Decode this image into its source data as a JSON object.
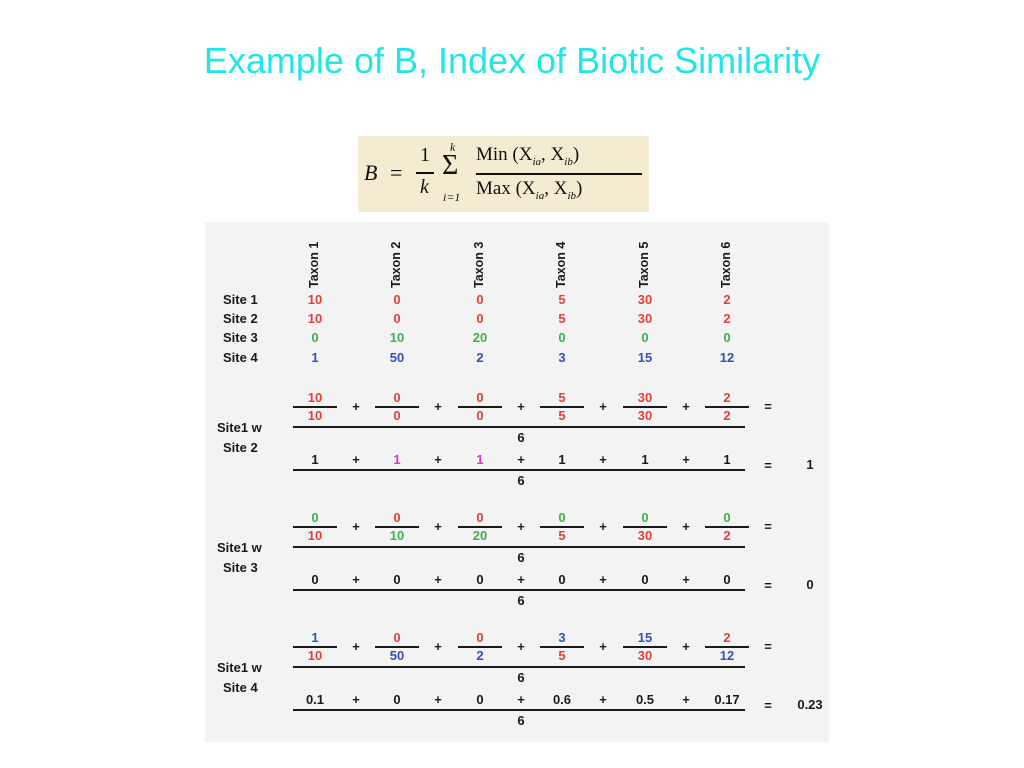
{
  "title": "Example of B, Index of Biotic Similarity",
  "formula": {
    "lhs": "B",
    "eq": "=",
    "one": "1",
    "k": "k",
    "sum_top": "k",
    "sum_sym": "Σ",
    "sum_bottom": "i=1",
    "numerator": "Min (X",
    "numerator_sub1": "ia",
    "numerator_mid": ", X",
    "numerator_sub2": "ib",
    "numerator_end": ")",
    "denominator": "Max (X",
    "denominator_sub1": "ia",
    "denominator_mid": ", X",
    "denominator_sub2": "ib",
    "denominator_end": ")"
  },
  "table": {
    "taxa": [
      "Taxon 1",
      "Taxon 2",
      "Taxon 3",
      "Taxon 4",
      "Taxon 5",
      "Taxon 6"
    ],
    "sites": [
      {
        "label": "Site 1",
        "values": [
          "10",
          "0",
          "0",
          "5",
          "30",
          "2"
        ],
        "color": "red"
      },
      {
        "label": "Site 2",
        "values": [
          "10",
          "0",
          "0",
          "5",
          "30",
          "2"
        ],
        "color": "red"
      },
      {
        "label": "Site 3",
        "values": [
          "0",
          "10",
          "20",
          "0",
          "0",
          "0"
        ],
        "color": "green"
      },
      {
        "label": "Site 4",
        "values": [
          "1",
          "50",
          "2",
          "3",
          "15",
          "12"
        ],
        "color": "blue"
      }
    ]
  },
  "comparisons": [
    {
      "label1": "Site1 w",
      "label2": "Site 2",
      "numerators": [
        "10",
        "0",
        "0",
        "5",
        "30",
        "2"
      ],
      "numerator_colors": [
        "red",
        "red",
        "red",
        "red",
        "red",
        "red"
      ],
      "denominators": [
        "10",
        "0",
        "0",
        "5",
        "30",
        "2"
      ],
      "denominator_colors": [
        "red",
        "red",
        "red",
        "red",
        "red",
        "red"
      ],
      "ratios": [
        "1",
        "1",
        "1",
        "1",
        "1",
        "1"
      ],
      "ratio_colors": [
        "black",
        "pink",
        "pink",
        "black",
        "black",
        "black"
      ],
      "divisor": "6",
      "result": "1"
    },
    {
      "label1": "Site1 w",
      "label2": "Site 3",
      "numerators": [
        "0",
        "0",
        "0",
        "0",
        "0",
        "0"
      ],
      "numerator_colors": [
        "green",
        "red",
        "red",
        "green",
        "green",
        "green"
      ],
      "denominators": [
        "10",
        "10",
        "20",
        "5",
        "30",
        "2"
      ],
      "denominator_colors": [
        "red",
        "green",
        "green",
        "red",
        "red",
        "red"
      ],
      "ratios": [
        "0",
        "0",
        "0",
        "0",
        "0",
        "0"
      ],
      "ratio_colors": [
        "black",
        "black",
        "black",
        "black",
        "black",
        "black"
      ],
      "divisor": "6",
      "result": "0"
    },
    {
      "label1": "Site1 w",
      "label2": "Site 4",
      "numerators": [
        "1",
        "0",
        "0",
        "3",
        "15",
        "2"
      ],
      "numerator_colors": [
        "blue",
        "red",
        "red",
        "blue",
        "blue",
        "red"
      ],
      "denominators": [
        "10",
        "50",
        "2",
        "5",
        "30",
        "12"
      ],
      "denominator_colors": [
        "red",
        "blue",
        "blue",
        "red",
        "red",
        "blue"
      ],
      "ratios": [
        "0.1",
        "0",
        "0",
        "0.6",
        "0.5",
        "0.17"
      ],
      "ratio_colors": [
        "black",
        "black",
        "black",
        "black",
        "black",
        "black"
      ],
      "divisor": "6",
      "result": "0.23"
    }
  ],
  "symbols": {
    "plus": "+",
    "equals": "="
  }
}
